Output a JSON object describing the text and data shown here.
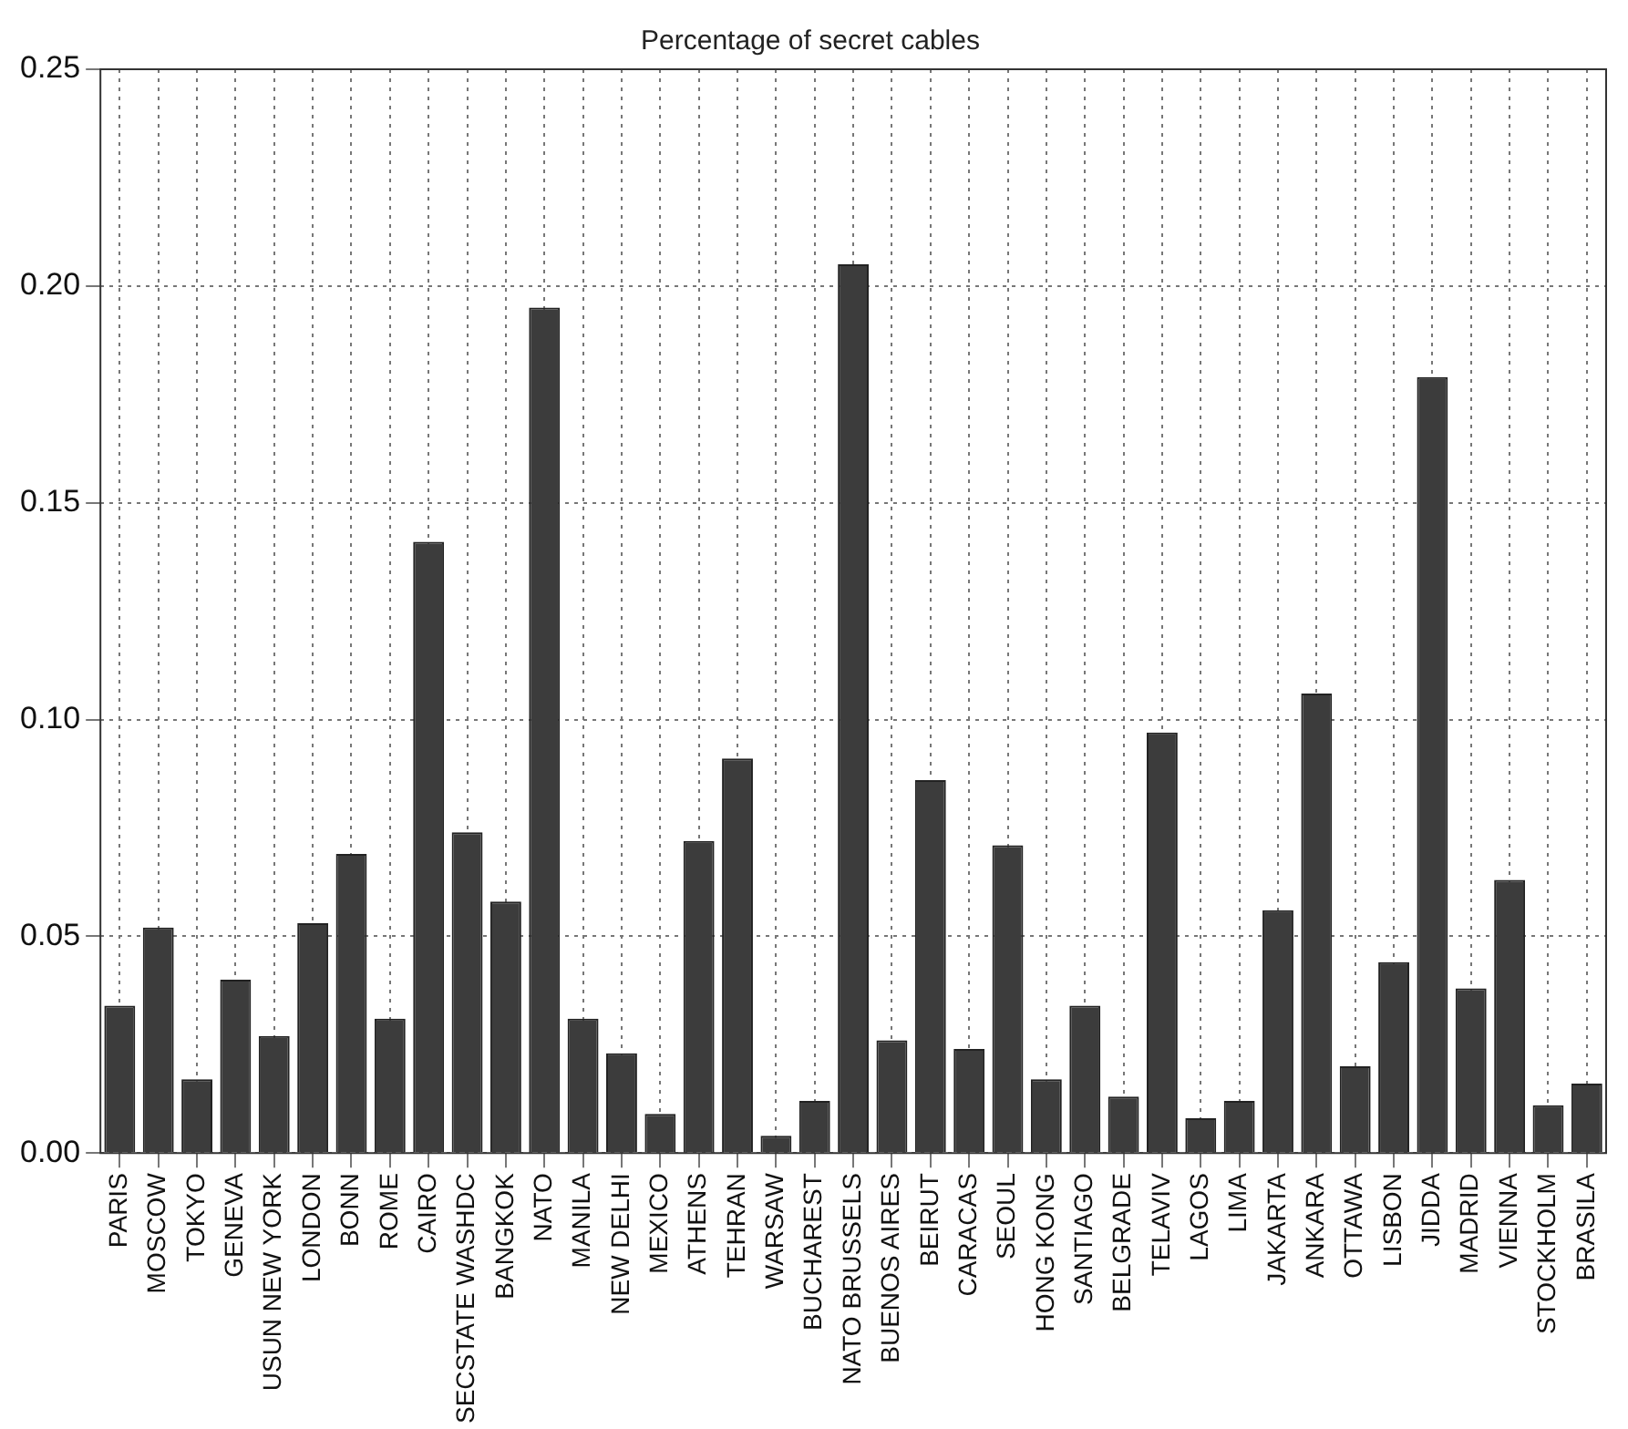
{
  "chart_data": {
    "type": "bar",
    "title": "Percentage of secret cables",
    "categories": [
      "PARIS",
      "MOSCOW",
      "TOKYO",
      "GENEVA",
      "USUN NEW YORK",
      "LONDON",
      "BONN",
      "ROME",
      "CAIRO",
      "SECSTATE WASHDC",
      "BANGKOK",
      "NATO",
      "MANILA",
      "NEW DELHI",
      "MEXICO",
      "ATHENS",
      "TEHRAN",
      "WARSAW",
      "BUCHAREST",
      "NATO BRUSSELS",
      "BUENOS AIRES",
      "BEIRUT",
      "CARACAS",
      "SEOUL",
      "HONG KONG",
      "SANTIAGO",
      "BELGRADE",
      "TELAVIV",
      "LAGOS",
      "LIMA",
      "JAKARTA",
      "ANKARA",
      "OTTAWA",
      "LISBON",
      "JIDDA",
      "MADRID",
      "VIENNA",
      "STOCKHOLM",
      "BRASILA"
    ],
    "values": [
      0.034,
      0.052,
      0.017,
      0.04,
      0.027,
      0.053,
      0.069,
      0.031,
      0.141,
      0.074,
      0.058,
      0.195,
      0.031,
      0.023,
      0.009,
      0.072,
      0.091,
      0.004,
      0.012,
      0.205,
      0.026,
      0.086,
      0.024,
      0.071,
      0.017,
      0.034,
      0.013,
      0.097,
      0.008,
      0.012,
      0.056,
      0.106,
      0.02,
      0.044,
      0.179,
      0.038,
      0.063,
      0.011,
      0.016
    ],
    "color": "#3c3c3c",
    "ylim": [
      0,
      0.25
    ],
    "yticks": [
      {
        "value": 0,
        "label": "0.00"
      },
      {
        "value": 0.05,
        "label": "0.05"
      },
      {
        "value": 0.1,
        "label": "0.10"
      },
      {
        "value": 0.15,
        "label": "0.15"
      },
      {
        "value": 0.2,
        "label": "0.20"
      },
      {
        "value": 0.25,
        "label": "0.25"
      }
    ],
    "grid": true
  }
}
